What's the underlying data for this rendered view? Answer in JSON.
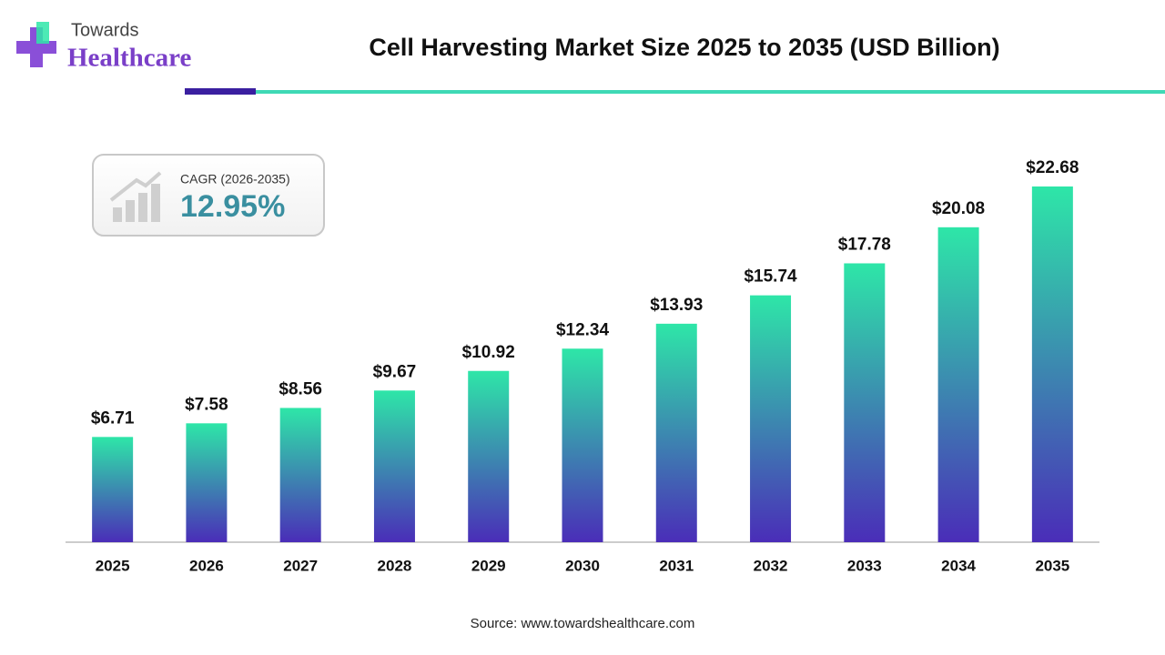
{
  "logo": {
    "line1": "Towards",
    "line2": "Healthcare"
  },
  "chart_data": {
    "type": "bar",
    "title": "Cell Harvesting Market Size 2025 to 2035 (USD Billion)",
    "categories": [
      "2025",
      "2026",
      "2027",
      "2028",
      "2029",
      "2030",
      "2031",
      "2032",
      "2033",
      "2034",
      "2035"
    ],
    "values": [
      6.71,
      7.58,
      8.56,
      9.67,
      10.92,
      12.34,
      13.93,
      15.74,
      17.78,
      20.08,
      22.68
    ],
    "value_labels": [
      "$6.71",
      "$7.58",
      "$8.56",
      "$9.67",
      "$10.92",
      "$12.34",
      "$13.93",
      "$15.74",
      "$17.78",
      "$20.08",
      "$22.68"
    ],
    "gradient": [
      "#2ee6a8",
      "#4a2db8"
    ],
    "ylim": [
      0,
      25
    ],
    "cagr_label": "CAGR (2026-2035)",
    "cagr_value": "12.95%",
    "source": "Source: www.towardshealthcare.com"
  }
}
